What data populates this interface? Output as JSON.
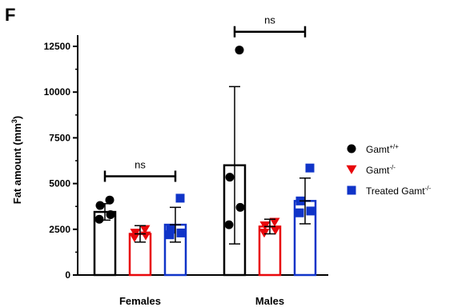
{
  "panel_letter": "F",
  "chart_data": {
    "type": "bar",
    "ylabel": "Fat amount (mm",
    "ylabel_sup": "3",
    "ylabel_tail": ")",
    "ylim": [
      0,
      12500
    ],
    "yticks": [
      0,
      2500,
      5000,
      7500,
      10000,
      12500
    ],
    "ytick_labels": [
      "0",
      "2500",
      "5000",
      "7500",
      "10000",
      "12500"
    ],
    "groups": [
      "Females",
      "Males"
    ],
    "series": [
      {
        "name": "Gamt",
        "name_sup": "+/+",
        "color": "#000000",
        "marker": "circle",
        "values": [
          3450,
          6000
        ],
        "sd": [
          450,
          4300
        ],
        "points": [
          [
            3050,
            3300,
            3800,
            4100
          ],
          [
            2750,
            3700,
            5350,
            12300
          ]
        ]
      },
      {
        "name": "Gamt",
        "name_sup": "-/-",
        "color": "#e8070b",
        "marker": "triangle-down",
        "values": [
          2250,
          2650
        ],
        "sd": [
          450,
          400
        ],
        "points": [
          [
            2050,
            2150,
            2300,
            2500
          ],
          [
            2300,
            2450,
            2700,
            2900
          ]
        ]
      },
      {
        "name": "Treated Gamt",
        "name_sup": "-/-",
        "color": "#1034c8",
        "marker": "square",
        "values": [
          2750,
          4050
        ],
        "sd": [
          950,
          1250
        ],
        "points": [
          [
            2200,
            2300,
            2500,
            4200
          ],
          [
            3400,
            3500,
            4050,
            5850
          ]
        ]
      }
    ],
    "annotations": [
      {
        "group": "Females",
        "text": "ns",
        "y": 5400
      },
      {
        "group": "Males",
        "text": "ns",
        "y": 13300
      }
    ],
    "legend_position": "right"
  }
}
